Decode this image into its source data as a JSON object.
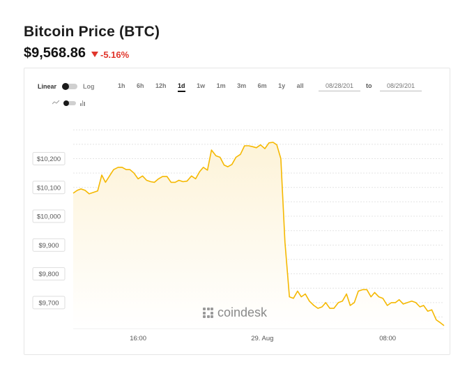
{
  "header": {
    "title": "Bitcoin Price (BTC)",
    "price": "$9,568.86",
    "change": "-5.16%",
    "change_color": "#e0352b"
  },
  "controls": {
    "scale_left": "Linear",
    "scale_right": "Log",
    "ranges": [
      "1h",
      "6h",
      "12h",
      "1d",
      "1w",
      "1m",
      "3m",
      "6m",
      "1y",
      "all"
    ],
    "active_range": "1d",
    "date_from": "08/28/201",
    "to_label": "to",
    "date_to": "08/29/201",
    "style_toggle": [
      "line-chart-icon",
      "bar-chart-icon"
    ]
  },
  "chart_data": {
    "type": "area",
    "title": "",
    "xlabel": "",
    "ylabel": "",
    "ylim": [
      9610,
      10320
    ],
    "yticks": [
      9700,
      9800,
      9900,
      10000,
      10100,
      10200
    ],
    "ytick_labels": [
      "$9,700",
      "$9,800",
      "$9,900",
      "$10,000",
      "$10,100",
      "$10,200"
    ],
    "xticks": [
      {
        "label": "16:00",
        "t": 0.175
      },
      {
        "label": "29. Aug",
        "t": 0.51
      },
      {
        "label": "08:00",
        "t": 0.848
      }
    ],
    "grid": true,
    "line_color": "#f5b800",
    "fill_color": "#fdf3d8",
    "series": [
      {
        "name": "",
        "x": [
          0.0,
          0.011,
          0.021,
          0.032,
          0.043,
          0.055,
          0.066,
          0.077,
          0.087,
          0.098,
          0.109,
          0.121,
          0.132,
          0.143,
          0.153,
          0.164,
          0.175,
          0.187,
          0.198,
          0.209,
          0.219,
          0.23,
          0.241,
          0.253,
          0.264,
          0.275,
          0.285,
          0.296,
          0.307,
          0.319,
          0.33,
          0.341,
          0.351,
          0.362,
          0.373,
          0.385,
          0.396,
          0.407,
          0.417,
          0.428,
          0.439,
          0.451,
          0.462,
          0.473,
          0.483,
          0.494,
          0.505,
          0.517,
          0.528,
          0.539,
          0.549,
          0.56,
          0.571,
          0.583,
          0.594,
          0.605,
          0.615,
          0.626,
          0.637,
          0.649,
          0.66,
          0.671,
          0.681,
          0.692,
          0.703,
          0.715,
          0.726,
          0.737,
          0.747,
          0.758,
          0.769,
          0.781,
          0.792,
          0.803,
          0.813,
          0.824,
          0.835,
          0.847,
          0.858,
          0.869,
          0.879,
          0.89,
          0.901,
          0.913,
          0.924,
          0.935,
          0.945,
          0.956,
          0.967,
          0.979,
          0.99,
          1.0
        ],
        "y": [
          10080,
          10090,
          10095,
          10090,
          10078,
          10083,
          10088,
          10143,
          10118,
          10140,
          10162,
          10170,
          10170,
          10162,
          10162,
          10150,
          10130,
          10140,
          10125,
          10120,
          10118,
          10130,
          10138,
          10138,
          10118,
          10118,
          10125,
          10120,
          10122,
          10140,
          10130,
          10155,
          10170,
          10160,
          10230,
          10210,
          10205,
          10178,
          10172,
          10180,
          10205,
          10215,
          10245,
          10245,
          10242,
          10238,
          10248,
          10235,
          10255,
          10257,
          10248,
          10200,
          9910,
          9720,
          9715,
          9740,
          9720,
          9730,
          9705,
          9690,
          9680,
          9685,
          9700,
          9680,
          9680,
          9700,
          9705,
          9730,
          9690,
          9700,
          9740,
          9745,
          9745,
          9720,
          9735,
          9720,
          9715,
          9690,
          9700,
          9700,
          9710,
          9695,
          9700,
          9705,
          9700,
          9685,
          9690,
          9670,
          9675,
          9640,
          9630,
          9620
        ]
      }
    ]
  },
  "watermark": {
    "text": "coindesk",
    "icon": "coindesk-logo-icon"
  }
}
